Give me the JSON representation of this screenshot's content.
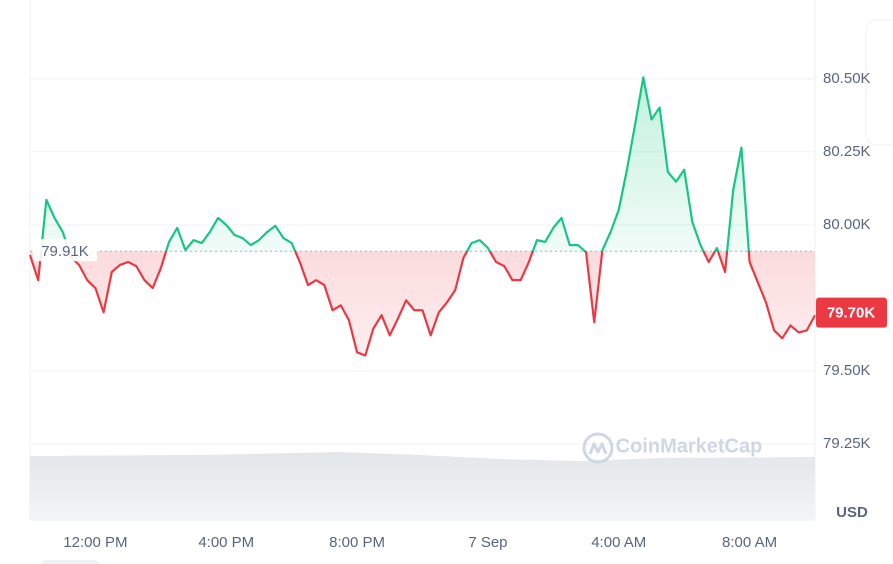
{
  "chart_data": {
    "type": "line",
    "unit_label": "USD",
    "watermark": "CoinMarketCap",
    "baseline": {
      "value": 79910,
      "label": "79.91K"
    },
    "current_price": {
      "value": 79700,
      "label": "79.70K"
    },
    "up_color": "#16c784",
    "down_color": "#ea3943",
    "grid": true,
    "xlim": [
      0,
      24
    ],
    "xticks": [
      {
        "value": 2,
        "label": "12:00 PM"
      },
      {
        "value": 6,
        "label": "4:00 PM"
      },
      {
        "value": 10,
        "label": "8:00 PM"
      },
      {
        "value": 14,
        "label": "7 Sep"
      },
      {
        "value": 18,
        "label": "4:00 AM"
      },
      {
        "value": 22,
        "label": "8:00 AM"
      }
    ],
    "ylim": [
      78990,
      80770
    ],
    "yticks": [
      {
        "value": 79250,
        "label": "79.25K"
      },
      {
        "value": 79500,
        "label": "79.50K"
      },
      {
        "value": 80000,
        "label": "80.00K"
      },
      {
        "value": 80250,
        "label": "80.25K"
      },
      {
        "value": 80500,
        "label": "80.50K"
      }
    ],
    "x": [
      0,
      0.25,
      0.5,
      0.75,
      1,
      1.25,
      1.5,
      1.75,
      2,
      2.25,
      2.5,
      2.75,
      3,
      3.25,
      3.5,
      3.75,
      4,
      4.25,
      4.5,
      4.75,
      5,
      5.25,
      5.5,
      5.75,
      6,
      6.25,
      6.5,
      6.75,
      7,
      7.25,
      7.5,
      7.75,
      8,
      8.25,
      8.5,
      8.75,
      9,
      9.25,
      9.5,
      9.75,
      10,
      10.25,
      10.5,
      10.75,
      11,
      11.25,
      11.5,
      11.75,
      12,
      12.25,
      12.5,
      12.75,
      13,
      13.25,
      13.5,
      13.75,
      14,
      14.25,
      14.5,
      14.75,
      15,
      15.25,
      15.5,
      15.75,
      16,
      16.25,
      16.5,
      16.75,
      17,
      17.25,
      17.5,
      17.75,
      18,
      18.25,
      18.5,
      18.75,
      19,
      19.25,
      19.5,
      19.75,
      20,
      20.25,
      20.5,
      20.75,
      21,
      21.25,
      21.5,
      21.75,
      22,
      22.25,
      22.5,
      22.75,
      23,
      23.25,
      23.5,
      23.75,
      24
    ],
    "values": [
      79897,
      79811,
      80086,
      80024,
      79976,
      79890,
      79863,
      79811,
      79784,
      79701,
      79839,
      79863,
      79873,
      79859,
      79811,
      79784,
      79852,
      79942,
      79990,
      79914,
      79948,
      79938,
      79976,
      80024,
      80000,
      79966,
      79955,
      79931,
      79948,
      79976,
      79997,
      79955,
      79938,
      79873,
      79794,
      79811,
      79794,
      79708,
      79725,
      79674,
      79564,
      79553,
      79646,
      79691,
      79622,
      79680,
      79742,
      79708,
      79708,
      79622,
      79701,
      79735,
      79777,
      79887,
      79938,
      79948,
      79921,
      79873,
      79859,
      79811,
      79811,
      79873,
      79948,
      79942,
      79990,
      80024,
      79931,
      79931,
      79907,
      79667,
      79914,
      79976,
      80052,
      80189,
      80344,
      80505,
      80361,
      80402,
      80182,
      80148,
      80189,
      80010,
      79931,
      79873,
      79921,
      79839,
      80120,
      80265,
      79873,
      79804,
      79735,
      79639,
      79612,
      79656,
      79632,
      79639,
      79691
    ]
  }
}
